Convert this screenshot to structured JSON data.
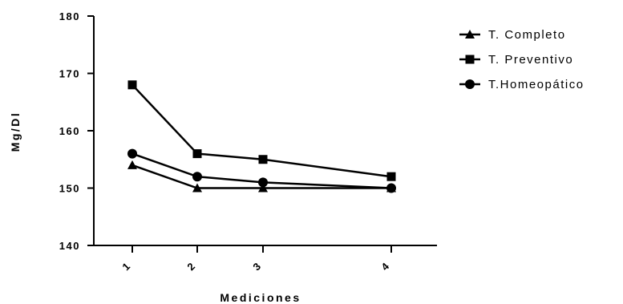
{
  "chart_data": {
    "type": "line",
    "xlabel": "Mediciones",
    "ylabel": "Mg/Dl",
    "categories": [
      "1",
      "2",
      "3",
      "4"
    ],
    "ylim": [
      140,
      180
    ],
    "yticks": [
      "140",
      "150",
      "160",
      "170",
      "180"
    ],
    "legend_position": "top-right",
    "grid": false,
    "series": [
      {
        "name": "T. Completo",
        "marker": "triangle",
        "values": [
          154,
          150,
          150,
          150
        ]
      },
      {
        "name": "T. Preventivo",
        "marker": "square",
        "values": [
          168,
          156,
          155,
          152
        ]
      },
      {
        "name": "T.Homeopático",
        "marker": "circle",
        "values": [
          156,
          152,
          151,
          150
        ]
      }
    ]
  }
}
